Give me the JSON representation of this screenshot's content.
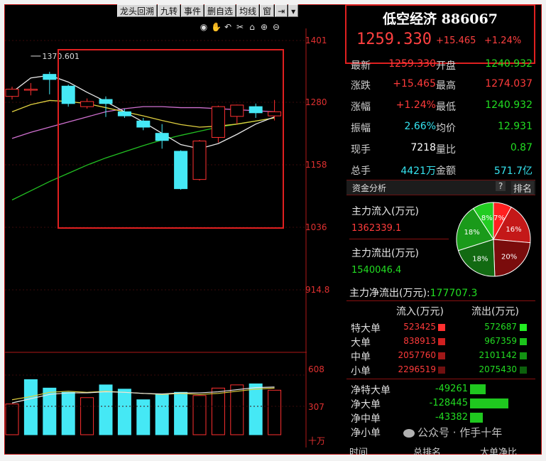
{
  "toolbar": {
    "items": [
      "龙头回溯",
      "九转",
      "事件",
      "删自选",
      "均线",
      "窗",
      "⇥",
      "▾"
    ]
  },
  "chart_axis": {
    "price_ticks": [
      "1401",
      "1280",
      "1158",
      "1036",
      "914.8"
    ],
    "high_label": "1370.601",
    "vol_ticks": [
      "608",
      "307",
      "十万"
    ]
  },
  "quote": {
    "name": "低空经济 886067",
    "price": "1259.330",
    "change": "+15.465",
    "change_pct": "+1.24%"
  },
  "stats": [
    {
      "l1": "最新",
      "v1": "1259.330",
      "c1": "red",
      "l2": "开盘",
      "v2": "1240.932",
      "c2": "grn"
    },
    {
      "l1": "涨跌",
      "v1": "+15.465",
      "c1": "red",
      "l2": "最高",
      "v2": "1274.037",
      "c2": "red"
    },
    {
      "l1": "涨幅",
      "v1": "+1.24%",
      "c1": "red",
      "l2": "最低",
      "v2": "1240.932",
      "c2": "grn"
    },
    {
      "l1": "振幅",
      "v1": "2.66%",
      "c1": "cyan",
      "l2": "均价",
      "v2": "12.931",
      "c2": "grn"
    },
    {
      "l1": "现手",
      "v1": "7218",
      "c1": "wht",
      "l2": "量比",
      "v2": "0.87",
      "c2": "grn"
    },
    {
      "l1": "总手",
      "v1": "4421万",
      "c1": "cyan",
      "l2": "金额",
      "v2": "571.7亿",
      "c2": "cyan"
    }
  ],
  "fund": {
    "title": "资金分析",
    "help": "?",
    "rank": "排名",
    "inflow_label": "主力流入(万元)",
    "inflow_value": "1362339.1",
    "outflow_label": "主力流出(万元)",
    "outflow_value": "1540046.4",
    "net_label": "主力净流出(万元):",
    "net_value": "177707.3",
    "pie_labels": [
      "7%",
      "16%",
      "20%",
      "18%",
      "18%",
      "8%"
    ]
  },
  "orders": {
    "header_in": "流入(万元)",
    "header_out": "流出(万元)",
    "rows": [
      {
        "label": "特大单",
        "in": "523425",
        "out": "572687"
      },
      {
        "label": "大单",
        "in": "838913",
        "out": "967359"
      },
      {
        "label": "中单",
        "in": "2057760",
        "out": "2101142"
      },
      {
        "label": "小单",
        "in": "2296519",
        "out": "2075430"
      }
    ],
    "net_rows": [
      {
        "label": "净特大单",
        "value": "-49261"
      },
      {
        "label": "净大单",
        "value": "-128445"
      },
      {
        "label": "净中单",
        "value": "-43382"
      },
      {
        "label": "净小单",
        "value": ""
      }
    ]
  },
  "footer": {
    "c1": "时间",
    "c2": "总排名",
    "c3": "大单净比"
  },
  "watermark": "公众号 · 作手十年",
  "chart_data": {
    "type": "candlestick",
    "candles": [
      {
        "o": 1292,
        "c": 1306,
        "h": 1311,
        "l": 1286
      },
      {
        "o": 1305,
        "c": 1306,
        "h": 1318,
        "l": 1294
      },
      {
        "o": 1335,
        "c": 1325,
        "h": 1340,
        "l": 1296
      },
      {
        "o": 1312,
        "c": 1278,
        "h": 1315,
        "l": 1272
      },
      {
        "o": 1272,
        "c": 1282,
        "h": 1288,
        "l": 1268
      },
      {
        "o": 1286,
        "c": 1278,
        "h": 1292,
        "l": 1252
      },
      {
        "o": 1262,
        "c": 1254,
        "h": 1268,
        "l": 1250
      },
      {
        "o": 1244,
        "c": 1232,
        "h": 1250,
        "l": 1226
      },
      {
        "o": 1220,
        "c": 1206,
        "h": 1238,
        "l": 1190
      },
      {
        "o": 1185,
        "c": 1112,
        "h": 1187,
        "l": 1110
      },
      {
        "o": 1130,
        "c": 1205,
        "h": 1207,
        "l": 1128
      },
      {
        "o": 1212,
        "c": 1272,
        "h": 1274,
        "l": 1202
      },
      {
        "o": 1253,
        "c": 1275,
        "h": 1276,
        "l": 1238
      },
      {
        "o": 1272,
        "c": 1260,
        "h": 1278,
        "l": 1250
      },
      {
        "o": 1254,
        "c": 1262,
        "h": 1285,
        "l": 1245
      }
    ],
    "ma_white": [
      1300,
      1328,
      1333,
      1320,
      1300,
      1282,
      1262,
      1242,
      1220,
      1198,
      1190,
      1200,
      1218,
      1238,
      1252
    ],
    "ma_yellow": [
      1262,
      1276,
      1284,
      1282,
      1278,
      1270,
      1262,
      1254,
      1245,
      1237,
      1232,
      1234,
      1238,
      1244,
      1250
    ],
    "ma_magenta": [
      1210,
      1222,
      1232,
      1242,
      1252,
      1262,
      1268,
      1272,
      1272,
      1270,
      1270,
      1268,
      1266,
      1264,
      1262
    ],
    "ma_green": [
      1090,
      1108,
      1126,
      1142,
      1158,
      1172,
      1184,
      1196,
      1207,
      1216,
      1224,
      1232,
      1238,
      1244,
      1250
    ],
    "volume": [
      290,
      520,
      440,
      400,
      350,
      470,
      430,
      330,
      380,
      400,
      370,
      440,
      470,
      480,
      420
    ],
    "vol_colors": [
      "red",
      "cyan",
      "cyan",
      "cyan",
      "red",
      "cyan",
      "cyan",
      "cyan",
      "cyan",
      "cyan",
      "red",
      "red",
      "red",
      "cyan",
      "red"
    ],
    "vol_ma_yellow": [
      330,
      360,
      400,
      410,
      400,
      410,
      400,
      390,
      380,
      390,
      380,
      390,
      410,
      430,
      440
    ],
    "vol_ma_white": [
      300,
      340,
      380,
      395,
      395,
      405,
      400,
      390,
      385,
      395,
      395,
      405,
      425,
      445,
      450
    ],
    "pie": [
      7,
      16,
      20,
      18,
      18,
      8
    ]
  }
}
